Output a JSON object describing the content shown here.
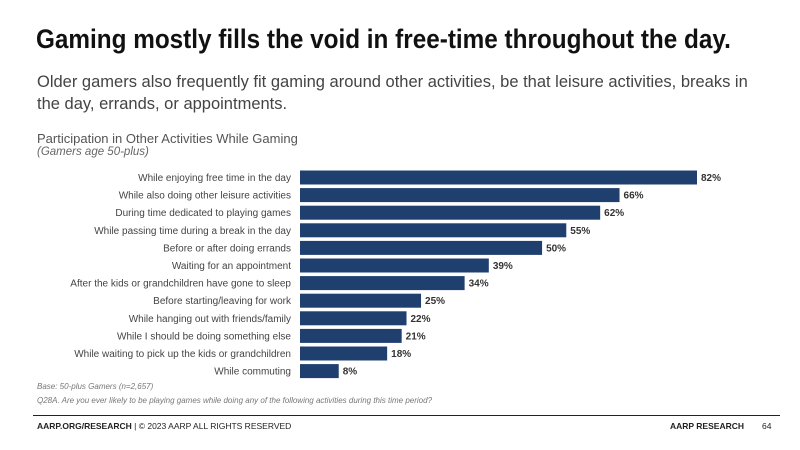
{
  "headline": "Gaming mostly fills the void in free-time throughout the day.",
  "subhead": "Older gamers also frequently fit gaming around other activities, be that leisure activities, breaks in the day, errands, or appointments.",
  "chart_data": {
    "type": "bar",
    "orientation": "horizontal",
    "title": "Participation in Other Activities While Gaming",
    "subtitle": "(Gamers age 50-plus)",
    "categories": [
      "While enjoying free time in the day",
      "While also doing other leisure activities",
      "During time dedicated to playing games",
      "While passing time during a break in the day",
      "Before or after doing errands",
      "Waiting for an appointment",
      "After the kids or grandchildren have gone to sleep",
      "Before starting/leaving for work",
      "While hanging out with friends/family",
      "While I should be doing something else",
      "While waiting to pick up the kids or grandchildren",
      "While commuting"
    ],
    "values": [
      82,
      66,
      62,
      55,
      50,
      39,
      34,
      25,
      22,
      21,
      18,
      8
    ],
    "data_labels": [
      "82%",
      "66%",
      "62%",
      "55%",
      "50%",
      "39%",
      "34%",
      "25%",
      "22%",
      "21%",
      "18%",
      "8%"
    ],
    "value_unit": "%",
    "xlim": [
      0,
      82
    ],
    "bar_color": "#1f3f6e",
    "grid": false,
    "legend": "none"
  },
  "notes": {
    "base": "Base: 50-plus Gamers (n=2,657)",
    "question": "Q28A. Are you ever likely to be playing games while doing any of the following activities during this time period?"
  },
  "footer": {
    "site": "AARP.ORG/RESEARCH",
    "copyright": "| © 2023 AARP ALL RIGHTS RESERVED",
    "brand": "AARP RESEARCH",
    "page_number": "64"
  }
}
